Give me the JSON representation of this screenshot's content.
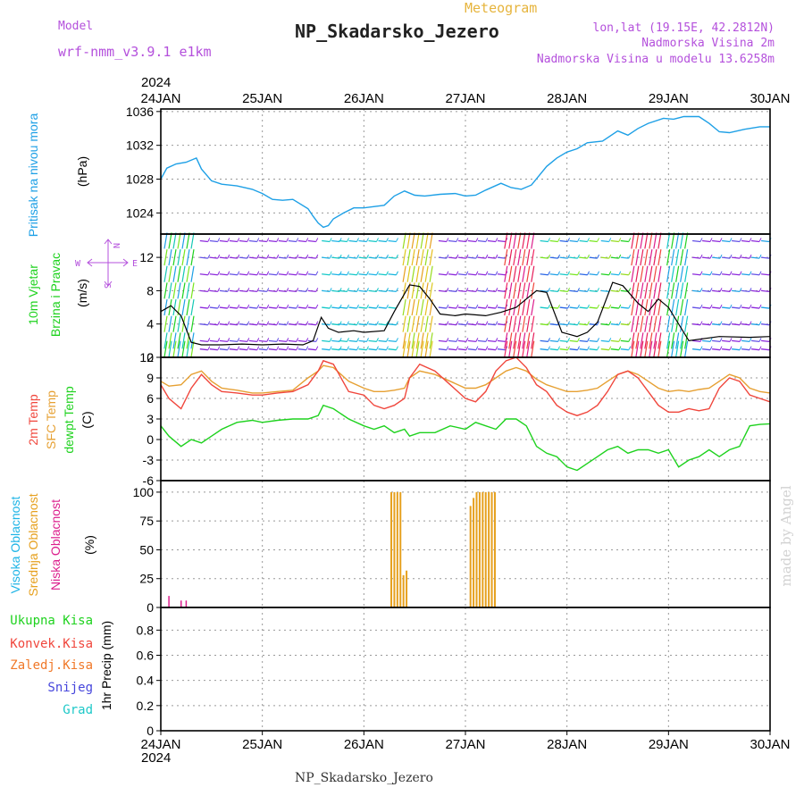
{
  "header": {
    "meteogram_label": "Meteogram",
    "title": "NP_Skadarsko_Jezero",
    "model_label": "Model",
    "model_name": "wrf-nmm_v3.9.1 e1km",
    "coords": "lon,lat (19.15E, 42.2812N)",
    "altitude": "Nadmorska Visina 2m",
    "model_altitude": "Nadmorska Visina u modelu 13.6258m",
    "year_top": "2024",
    "year_bottom": "2024",
    "footer": "NP_Skadarsko_Jezero",
    "watermark": "made by Angel"
  },
  "panels": {
    "pressure": {
      "label1": "Pritisak na nivou mora",
      "unit": "(hPa)"
    },
    "wind": {
      "label1": "10m Vjetar",
      "label2": "Brzina i Pravac",
      "unit": "(m/s)",
      "compass_w": "W",
      "compass_e": "E",
      "compass_n": "N",
      "compass_s": "S"
    },
    "temp": {
      "label1": "2m Temp",
      "label2": "SFC Temp",
      "label3": "dewpt Temp",
      "unit": "(C)"
    },
    "cloud": {
      "label1": "Visoka Oblacnost",
      "label2": "Srednja Oblacnost",
      "label3": "Niska Oblacnost",
      "unit": "(%)"
    },
    "precip": {
      "labels": [
        "Ukupna Kisa",
        "Konvek.Kisa",
        "Zaledj.Kisa",
        "Snijeg",
        "Grad"
      ],
      "unit": "1hr Precip (mm)"
    }
  },
  "colors": {
    "pressure": "#1ea0e6",
    "wind_speed": "#000000",
    "gust": "#f0503c",
    "t2m": "#f0463c",
    "sfc": "#e6a032",
    "dewpt": "#1ed21e",
    "cloud_mid": "#e6a01e",
    "cloud_low": "#dc1e8c",
    "cloud_high": "#1eb4e6",
    "label_green": "#1ed21e",
    "label_red": "#f0463c",
    "label_orange": "#f07828",
    "label_blue": "#4646dc",
    "label_cyan": "#1ec8c8",
    "purple": "#b450dc",
    "label_pressure": "#1ea0e6"
  },
  "chart_data": [
    {
      "type": "line",
      "name": "pressure",
      "x_ticks": [
        "24JAN",
        "25JAN",
        "26JAN",
        "27JAN",
        "28JAN",
        "29JAN",
        "30JAN"
      ],
      "xlim_days": [
        0,
        6
      ],
      "ylim": [
        1021.5,
        1036.3
      ],
      "y_ticks": [
        1024,
        1028,
        1032,
        1036
      ],
      "grid": true,
      "x_day": [
        0.0,
        0.06,
        0.15,
        0.25,
        0.35,
        0.4,
        0.5,
        0.6,
        0.75,
        0.9,
        1.0,
        1.1,
        1.2,
        1.3,
        1.45,
        1.5,
        1.55,
        1.6,
        1.65,
        1.7,
        1.8,
        1.9,
        2.0,
        2.2,
        2.3,
        2.4,
        2.5,
        2.6,
        2.75,
        2.9,
        3.0,
        3.1,
        3.2,
        3.35,
        3.45,
        3.55,
        3.65,
        3.8,
        3.9,
        4.0,
        4.1,
        4.2,
        4.35,
        4.5,
        4.6,
        4.7,
        4.8,
        4.95,
        5.05,
        5.15,
        5.3,
        5.4,
        5.5,
        5.6,
        5.75,
        5.9,
        6.0
      ],
      "values": [
        1028.0,
        1029.3,
        1029.8,
        1030.0,
        1030.5,
        1029.2,
        1027.8,
        1027.4,
        1027.2,
        1026.8,
        1026.3,
        1025.6,
        1025.5,
        1025.6,
        1024.5,
        1023.6,
        1022.8,
        1022.3,
        1022.5,
        1023.3,
        1024.0,
        1024.6,
        1024.6,
        1024.9,
        1026.0,
        1026.6,
        1026.1,
        1026.0,
        1026.2,
        1026.3,
        1026.0,
        1026.1,
        1026.7,
        1027.5,
        1027.0,
        1026.8,
        1027.3,
        1029.5,
        1030.5,
        1031.2,
        1031.6,
        1032.3,
        1032.5,
        1033.7,
        1033.2,
        1034.0,
        1034.6,
        1035.2,
        1035.1,
        1035.4,
        1035.4,
        1034.6,
        1033.6,
        1033.5,
        1033.9,
        1034.2,
        1034.2
      ]
    },
    {
      "type": "line",
      "name": "wind",
      "ylim": [
        0,
        14.8
      ],
      "y_ticks": [
        0,
        4,
        8,
        12
      ],
      "grid": true,
      "x_day": [
        0.0,
        0.1,
        0.2,
        0.3,
        0.4,
        0.6,
        0.8,
        1.0,
        1.2,
        1.4,
        1.5,
        1.58,
        1.65,
        1.75,
        1.9,
        2.0,
        2.2,
        2.3,
        2.45,
        2.55,
        2.65,
        2.75,
        2.9,
        3.0,
        3.2,
        3.35,
        3.5,
        3.6,
        3.7,
        3.8,
        3.95,
        4.1,
        4.2,
        4.3,
        4.45,
        4.55,
        4.7,
        4.8,
        4.9,
        5.0,
        5.2,
        5.5,
        5.8,
        6.0
      ],
      "speed": [
        5.5,
        6.2,
        5.0,
        1.8,
        1.5,
        1.5,
        1.6,
        1.5,
        1.6,
        1.5,
        2.0,
        4.8,
        3.5,
        3.0,
        3.2,
        3.0,
        3.2,
        5.5,
        8.7,
        8.5,
        7.0,
        5.2,
        5.0,
        5.2,
        5.0,
        5.4,
        6.0,
        7.0,
        8.0,
        7.8,
        3.0,
        2.5,
        3.0,
        4.2,
        9.0,
        8.6,
        6.5,
        5.5,
        7.0,
        6.0,
        2.0,
        2.5,
        2.4,
        2.5
      ]
    },
    {
      "type": "line",
      "name": "temperature",
      "ylim": [
        -6,
        12
      ],
      "y_ticks": [
        -6,
        -3,
        0,
        3,
        6,
        9,
        12
      ],
      "grid": true,
      "x_day": [
        0.0,
        0.08,
        0.2,
        0.3,
        0.4,
        0.5,
        0.6,
        0.75,
        0.9,
        1.0,
        1.15,
        1.3,
        1.45,
        1.55,
        1.6,
        1.7,
        1.85,
        2.0,
        2.1,
        2.2,
        2.3,
        2.4,
        2.45,
        2.55,
        2.7,
        2.85,
        3.0,
        3.1,
        3.2,
        3.3,
        3.4,
        3.5,
        3.6,
        3.7,
        3.8,
        3.9,
        4.0,
        4.1,
        4.2,
        4.3,
        4.4,
        4.5,
        4.6,
        4.7,
        4.8,
        4.9,
        5.0,
        5.1,
        5.2,
        5.3,
        5.4,
        5.5,
        5.6,
        5.7,
        5.8,
        5.9,
        6.0
      ],
      "t2m": [
        8.0,
        6.0,
        4.5,
        7.5,
        9.5,
        8.0,
        7.0,
        6.8,
        6.5,
        6.5,
        6.8,
        7.0,
        8.0,
        10.0,
        11.5,
        11.0,
        7.0,
        6.5,
        5.0,
        4.5,
        5.0,
        6.0,
        9.0,
        11.0,
        10.0,
        8.0,
        6.0,
        5.5,
        7.0,
        10.0,
        11.5,
        12.0,
        10.5,
        8.0,
        7.0,
        5.0,
        4.0,
        3.5,
        4.0,
        5.0,
        7.0,
        9.5,
        10.0,
        9.0,
        7.0,
        5.0,
        4.0,
        4.0,
        4.5,
        4.2,
        4.5,
        7.5,
        9.0,
        8.5,
        6.5,
        6.0,
        5.5
      ],
      "sfc": [
        8.5,
        7.8,
        8.0,
        9.5,
        10.0,
        8.5,
        7.5,
        7.2,
        6.8,
        6.8,
        7.0,
        7.2,
        9.0,
        10.0,
        10.8,
        10.5,
        8.5,
        7.5,
        7.0,
        7.0,
        7.2,
        7.5,
        9.0,
        10.0,
        9.5,
        8.5,
        7.5,
        7.5,
        8.0,
        9.0,
        10.0,
        10.5,
        10.0,
        8.8,
        8.0,
        7.5,
        7.0,
        7.0,
        7.2,
        7.5,
        8.5,
        9.5,
        10.0,
        9.5,
        8.5,
        7.5,
        7.0,
        7.2,
        7.0,
        7.3,
        7.5,
        8.5,
        9.5,
        9.0,
        7.5,
        7.0,
        6.8
      ],
      "dewpt": [
        2.0,
        0.5,
        -1.0,
        0.0,
        -0.5,
        0.5,
        1.5,
        2.5,
        2.8,
        2.5,
        2.8,
        3.0,
        3.0,
        3.5,
        5.0,
        4.5,
        3.0,
        2.0,
        1.5,
        2.0,
        1.0,
        1.5,
        0.5,
        1.0,
        1.0,
        2.0,
        1.5,
        2.5,
        2.0,
        1.5,
        3.0,
        3.0,
        2.0,
        -1.0,
        -2.0,
        -2.5,
        -4.0,
        -4.5,
        -3.5,
        -2.5,
        -1.5,
        -1.0,
        -2.0,
        -1.5,
        -1.5,
        -2.0,
        -1.5,
        -4.0,
        -3.0,
        -2.5,
        -1.5,
        -2.5,
        -1.5,
        -1.0,
        2.0,
        2.2,
        2.3
      ]
    },
    {
      "type": "bar",
      "name": "cloud",
      "ylim": [
        0,
        100
      ],
      "y_ticks": [
        0,
        25,
        50,
        75,
        100
      ],
      "grid": true,
      "mid_x_day": [
        2.27,
        2.3,
        2.33,
        2.36,
        2.39,
        2.42,
        3.05,
        3.08,
        3.11,
        3.14,
        3.17,
        3.2,
        3.23,
        3.26,
        3.29
      ],
      "mid_values": [
        100,
        100,
        100,
        100,
        28,
        32,
        88,
        95,
        100,
        100,
        100,
        100,
        100,
        100,
        100
      ],
      "low_x_day": [
        0.08,
        0.2,
        0.25
      ],
      "low_values": [
        10,
        6,
        6
      ]
    },
    {
      "type": "bar",
      "name": "precip",
      "ylim": [
        0,
        1
      ],
      "y_ticks": [
        0,
        0.2,
        0.4,
        0.6,
        0.8
      ],
      "grid": true,
      "values": []
    }
  ]
}
